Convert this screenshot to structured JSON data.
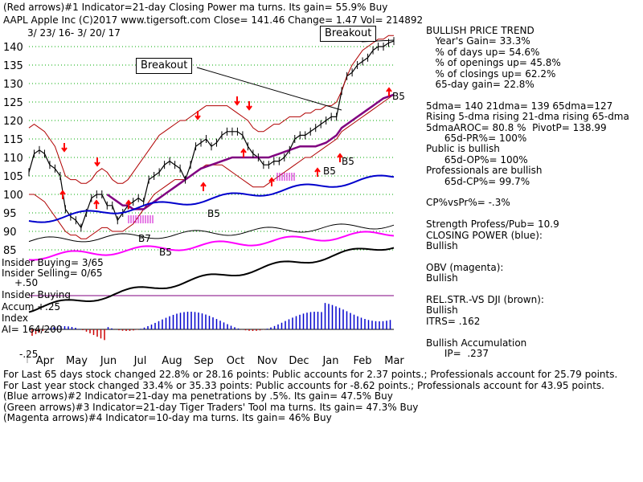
{
  "header": {
    "line1": "(Red arrows)#1 Indicator=21-day Closing Power ma turns.  Its gain= 55.9% Buy",
    "line2": "AAPL   Apple Inc  (C)2017 www.tigersoft.com     Close=  141.46  Change=  1.47 Vol=  214892",
    "line3": "3/ 23/ 16-  3/ 20/ 17"
  },
  "annotations": {
    "breakout_top": "Breakout",
    "breakout_mid": "Breakout",
    "b5_labels": [
      "B5",
      "B5",
      "B5",
      "B5",
      "B5",
      "B7"
    ]
  },
  "left_labels": {
    "insider_buying": "Insider Buying= 3/65",
    "insider_selling": "Insider Selling= 0/65",
    "plus50": "+.50",
    "insider_buying2": "Insider Buying",
    "accum": "Accum",
    "plus25": "+.25",
    "index": "Index",
    "ai": "AI= 164/200",
    "minus25": "-.25"
  },
  "right_panel": [
    {
      "text": "BULLISH PRICE TREND",
      "bold": false
    },
    {
      "text": "   Year's Gain= 33.3%"
    },
    {
      "text": "   % of days up= 54.6%"
    },
    {
      "text": "   % of openings up= 45.8%"
    },
    {
      "text": "   % of closings up= 62.2%"
    },
    {
      "text": "   65-day gain= 22.8%"
    },
    {
      "text": ""
    },
    {
      "text": "5dma= 140 21dma= 139 65dma=127"
    },
    {
      "text": "Rising 5-dma rising 21-dma rising 65-dma"
    },
    {
      "text": "5dmaAROC= 80.8 %  PivotP= 138.99"
    },
    {
      "text": "      65d-PR%= 100%"
    },
    {
      "text": "Public is bullish"
    },
    {
      "text": "      65d-OP%= 100%"
    },
    {
      "text": "Professionals are bullish"
    },
    {
      "text": "      65d-CP%= 99.7%"
    },
    {
      "text": ""
    },
    {
      "text": "CP%vsPr%= -.3%"
    },
    {
      "text": ""
    },
    {
      "text": "Strength Profess/Pub= 10.9"
    },
    {
      "text": "CLOSING POWER (blue):"
    },
    {
      "text": "Bullish"
    },
    {
      "text": ""
    },
    {
      "text": "OBV (magenta):"
    },
    {
      "text": "Bullish"
    },
    {
      "text": ""
    },
    {
      "text": "REL.STR.-VS DJI (brown):"
    },
    {
      "text": "Bullish"
    },
    {
      "text": "ITRS= .162"
    },
    {
      "text": ""
    },
    {
      "text": "Bullish Accumulation"
    },
    {
      "text": "      IP=  .237"
    }
  ],
  "footer": [
    "For Last 65 days stock changed  22.8% or  28.16 points:  Public accounts for  2.37 points.;  Professionals account for  25.79 points.",
    "For Last year stock changed  33.4% or  35.33 points:  Public accounts for  -8.62 points.;  Professionals account for  43.95 points.",
    "(Blue arrows)#2 Indicator=21-day ma penetrations by .5%.  Its gain= 47.5% Buy",
    "(Green arrows)#3 Indicator=21-day Tiger Traders' Tool ma turns.  Its gain= 47.3% Buy",
    "(Magenta arrows)#4 Indicator=10-day ma turns.  Its gain= 46% Buy"
  ],
  "colors": {
    "price": "#000000",
    "band": "#b00000",
    "ma65": "#800080",
    "closing_power": "#0000cc",
    "obv": "#ff00ff",
    "rel_str": "#000000",
    "accum_pos": "#0000cc",
    "accum_neg": "#cc0000",
    "grid": "#00aa00",
    "arrow_red": "#ff0000",
    "arrow_magenta": "#cc00cc"
  },
  "chart_data": {
    "type": "line",
    "title": "AAPL   Apple Inc",
    "y_ticks": [
      140,
      135,
      130,
      125,
      120,
      115,
      110,
      105,
      100,
      95,
      90,
      85
    ],
    "ylim": [
      83,
      143
    ],
    "x_ticks": [
      "Apr",
      "May",
      "Jun",
      "Jul",
      "Aug",
      "Sep",
      "Oct",
      "Nov",
      "Dec",
      "Jan",
      "Feb",
      "Mar"
    ],
    "grid": true,
    "series": [
      {
        "key": "price",
        "values": [
          106,
          111,
          112,
          111,
          108,
          107,
          105,
          96,
          94,
          93,
          91,
          95,
          99,
          100,
          100,
          97,
          97,
          93,
          95,
          97,
          98,
          99,
          98,
          104,
          105,
          106,
          108,
          109,
          108,
          107,
          104,
          108,
          113,
          114,
          115,
          113,
          114,
          116,
          117,
          117,
          117,
          116,
          113,
          111,
          110,
          108,
          108,
          109,
          109,
          110,
          112,
          115,
          116,
          116,
          117,
          118,
          119,
          120,
          121,
          121,
          128,
          132,
          133,
          135,
          136,
          137,
          139,
          140,
          140,
          141,
          141.5
        ]
      },
      {
        "key": "band_upper",
        "values": [
          118,
          119,
          118,
          117,
          115,
          113,
          109,
          105,
          104,
          104,
          103,
          103,
          104,
          106,
          107,
          106,
          104,
          103,
          103,
          104,
          106,
          108,
          110,
          112,
          114,
          116,
          117,
          118,
          119,
          120,
          120,
          121,
          122,
          123,
          124,
          124,
          124,
          124,
          124,
          123,
          122,
          121,
          120,
          118,
          117,
          117,
          118,
          119,
          119,
          120,
          121,
          121,
          121,
          122,
          122,
          123,
          123,
          124,
          124,
          125,
          128,
          132,
          135,
          137,
          139,
          140,
          141,
          142,
          142,
          143,
          143
        ]
      },
      {
        "key": "band_lower",
        "values": [
          100,
          100,
          99,
          98,
          96,
          94,
          92,
          90,
          89,
          89,
          88,
          88,
          89,
          90,
          91,
          91,
          90,
          90,
          90,
          91,
          92,
          94,
          96,
          98,
          100,
          101,
          102,
          103,
          104,
          104,
          104,
          105,
          106,
          107,
          108,
          108,
          108,
          108,
          107,
          106,
          105,
          104,
          103,
          102,
          102,
          102,
          103,
          104,
          105,
          106,
          107,
          108,
          109,
          110,
          110,
          111,
          112,
          113,
          114,
          115,
          117,
          118,
          119,
          120,
          121,
          122,
          123,
          124,
          125,
          126,
          127
        ]
      },
      {
        "key": "ma65",
        "values": [
          null,
          null,
          null,
          null,
          null,
          null,
          null,
          null,
          null,
          null,
          null,
          null,
          null,
          null,
          null,
          100,
          99,
          98,
          97,
          97,
          96,
          96,
          96,
          97,
          98,
          99,
          100,
          101,
          102,
          103,
          104,
          105,
          106,
          107,
          107.5,
          108,
          108.5,
          109,
          109.5,
          110,
          110,
          110,
          110,
          110,
          110,
          110,
          110,
          110.5,
          111,
          111.5,
          112,
          112.5,
          113,
          113,
          113,
          113,
          113.5,
          114,
          115,
          116,
          118,
          119,
          120,
          121,
          122,
          123,
          124,
          125,
          126,
          126.5,
          127
        ]
      }
    ]
  }
}
